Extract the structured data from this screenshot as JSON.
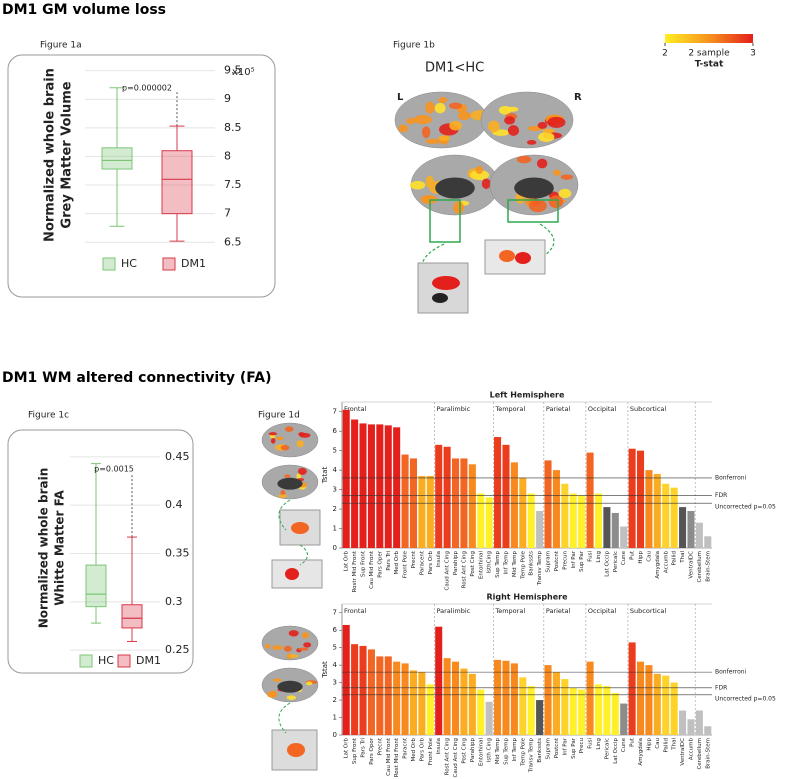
{
  "headings": [
    "DM1 GM volume loss",
    "DM1 WM altered connectivity (FA)"
  ],
  "figure_1b": {
    "label": "Figure 1b",
    "contrast": "DM1<HC",
    "left": "L",
    "right": "R",
    "colorbar": {
      "ticks": [
        2,
        3
      ],
      "label": [
        "2 sample",
        "T-stat"
      ]
    }
  },
  "chart_data": [
    {
      "type": "box",
      "label": "Figure 1a",
      "ylabel": [
        "Normalized whole brain",
        "Grey Matter Volume"
      ],
      "y_multiplier": "x10⁵",
      "annotation": "p=0.000002",
      "grid": true,
      "ylim": [
        6.4,
        9.65
      ],
      "yticks": [
        6.5,
        7,
        7.5,
        8,
        8.5,
        9,
        9.5
      ],
      "series": [
        {
          "name": "HC",
          "color": "#7cc576",
          "min": 6.78,
          "q1": 7.78,
          "median": 7.93,
          "q3": 8.15,
          "max": 9.2
        },
        {
          "name": "DM1",
          "color": "#d9394a",
          "min": 6.52,
          "q1": 7.0,
          "median": 7.6,
          "q3": 8.1,
          "max": 8.53
        }
      ]
    },
    {
      "type": "box",
      "label": "Figure 1c",
      "ylabel": [
        "Normalized whole brain",
        "Whitte Matter FA"
      ],
      "annotation": "p=0.0015",
      "grid": true,
      "ylim": [
        0.245,
        0.455
      ],
      "yticks": [
        0.25,
        0.3,
        0.35,
        0.4,
        0.45
      ],
      "series": [
        {
          "name": "HC",
          "color": "#7cc576",
          "min": 0.278,
          "q1": 0.295,
          "median": 0.308,
          "q3": 0.338,
          "max": 0.443
        },
        {
          "name": "DM1",
          "color": "#d9394a",
          "min": 0.259,
          "q1": 0.273,
          "median": 0.283,
          "q3": 0.297,
          "max": 0.367
        }
      ]
    },
    {
      "type": "bar",
      "label": "Figure 1d",
      "title": "Left Hemisphere",
      "ylabel": "Tstat",
      "ylim": [
        0,
        7.5
      ],
      "yticks": [
        0,
        1,
        2,
        3,
        4,
        5,
        6,
        7
      ],
      "thresholds": [
        {
          "label": "Bonferroni",
          "value": 3.6
        },
        {
          "label": "FDR",
          "value": 2.7
        },
        {
          "label": "Uncorrected p=0.05",
          "value": 2.3
        }
      ],
      "groups": [
        {
          "name": "Frontal",
          "categories": [
            "Lat Orb",
            "Rostr Mid Front",
            "Sup Front",
            "Cau Mid Front",
            "Pars Oper",
            "Pars Tri",
            "Med Orb",
            "Front Pole",
            "Precnt",
            "Paracent",
            "Pars Orb"
          ],
          "values": [
            7.1,
            6.6,
            6.4,
            6.35,
            6.35,
            6.3,
            6.2,
            4.8,
            4.6,
            3.7,
            3.7
          ],
          "colors": [
            "#e3201b",
            "#e3201b",
            "#e3201b",
            "#e3201b",
            "#e3201b",
            "#e3201b",
            "#e3201b",
            "#f26522",
            "#f26522",
            "#fbad21",
            "#fbad21"
          ]
        },
        {
          "name": "Paralimbic",
          "categories": [
            "Insula",
            "Caud Ant Cing",
            "Parahipp",
            "Rost Ant Cing",
            "Post Cing",
            "Entorhinal",
            "IsthCing"
          ],
          "values": [
            5.3,
            5.2,
            4.6,
            4.6,
            4.3,
            2.8,
            2.6
          ],
          "colors": [
            "#ec3c1e",
            "#ec3c1e",
            "#f26522",
            "#f26522",
            "#f7891f",
            "#fff02a",
            "#fff02a"
          ]
        },
        {
          "name": "Temporal",
          "categories": [
            "Sup Temp",
            "Inf Temp",
            "Mid Temp",
            "Temp Pole",
            "Bankssts",
            "Transv Temp"
          ],
          "values": [
            5.7,
            5.3,
            4.4,
            3.6,
            2.8,
            1.9
          ],
          "colors": [
            "#ec3c1e",
            "#ec3c1e",
            "#f7891f",
            "#fbad21",
            "#fff02a",
            "#c0c0c0"
          ]
        },
        {
          "name": "Parietal",
          "categories": [
            "Supram",
            "Postcnt",
            "Precun",
            "Inf Par",
            "Sup Par"
          ],
          "values": [
            4.5,
            4.0,
            3.3,
            2.8,
            2.7
          ],
          "colors": [
            "#f26522",
            "#f7891f",
            "#fdd22a",
            "#fff02a",
            "#fff02a"
          ]
        },
        {
          "name": "Occipital",
          "categories": [
            "Fusi",
            "Ling",
            "Lat Occip",
            "Pericalc",
            "Cune"
          ],
          "values": [
            4.9,
            2.8,
            2.1,
            1.8,
            1.1
          ],
          "colors": [
            "#f26522",
            "#fff02a",
            "#555555",
            "#8c8c8c",
            "#c0c0c0"
          ]
        },
        {
          "name": "Subcortical",
          "categories": [
            "Put",
            "Hipp",
            "Cau",
            "Amygdala",
            "Accumb",
            "Pallid",
            "Thal",
            "VentralDC"
          ],
          "values": [
            5.1,
            5.0,
            4.0,
            3.8,
            3.3,
            3.1,
            2.1,
            1.9
          ],
          "colors": [
            "#ec3c1e",
            "#ec3c1e",
            "#f7891f",
            "#fbad21",
            "#fdd22a",
            "#fdd22a",
            "#555555",
            "#8c8c8c"
          ]
        },
        {
          "categories": [
            "Cerebellum",
            "Brain-Stem"
          ],
          "values": [
            1.3,
            0.6
          ],
          "colors": [
            "#c0c0c0",
            "#c0c0c0"
          ]
        }
      ]
    },
    {
      "type": "bar",
      "title": "Right Hemisphere",
      "ylabel": "Tstat",
      "ylim": [
        0,
        7.5
      ],
      "yticks": [
        0,
        1,
        2,
        3,
        4,
        5,
        6,
        7
      ],
      "thresholds": [
        {
          "label": "Bonferroni",
          "value": 3.6
        },
        {
          "label": "FDR",
          "value": 2.7
        },
        {
          "label": "Uncorrected p=0.05",
          "value": 2.3
        }
      ],
      "groups": [
        {
          "name": "Frontal",
          "categories": [
            "Lat Orb",
            "Sup Front",
            "Pars Tri",
            "Pars Opor",
            "Precnt",
            "Cau Mid Front",
            "Rost Mid Front",
            "Paracnt",
            "Med Orb",
            "Pars Orb",
            "Front Pole"
          ],
          "values": [
            6.3,
            5.2,
            5.1,
            4.9,
            4.5,
            4.5,
            4.2,
            4.1,
            3.7,
            3.6,
            2.9
          ],
          "colors": [
            "#e3201b",
            "#ec3c1e",
            "#ec3c1e",
            "#f26522",
            "#f26522",
            "#f26522",
            "#f7891f",
            "#f7891f",
            "#fbad21",
            "#fbad21",
            "#fff02a"
          ]
        },
        {
          "name": "Paralimbic",
          "categories": [
            "Insula",
            "Rost Ant Cing",
            "Caud Ant Cing",
            "Post Cing",
            "Parahipp",
            "Entorhinal",
            "Isth Cing"
          ],
          "values": [
            6.2,
            4.4,
            4.2,
            3.8,
            3.5,
            2.6,
            1.9
          ],
          "colors": [
            "#e3201b",
            "#f7891f",
            "#f7891f",
            "#fbad21",
            "#fbad21",
            "#fff02a",
            "#c0c0c0"
          ]
        },
        {
          "name": "Temporal",
          "categories": [
            "Mid Temp",
            "Sup Temp",
            "Inf Temp",
            "Temp Pole",
            "Transv Temp",
            "Bankssts"
          ],
          "values": [
            4.3,
            4.25,
            4.1,
            3.3,
            2.8,
            2.0
          ],
          "colors": [
            "#f7891f",
            "#f7891f",
            "#f7891f",
            "#fdd22a",
            "#fff02a",
            "#555555"
          ]
        },
        {
          "name": "Parietal",
          "categories": [
            "Supram",
            "Postcnt",
            "Inf Par",
            "Sup Par",
            "Precu"
          ],
          "values": [
            4.0,
            3.6,
            3.2,
            2.7,
            2.6
          ],
          "colors": [
            "#f7891f",
            "#fbad21",
            "#fdd22a",
            "#fff02a",
            "#fff02a"
          ]
        },
        {
          "name": "Occipital",
          "categories": [
            "Fusi",
            "Ling",
            "Pericalc",
            "Lat Occip",
            "Cune"
          ],
          "values": [
            4.2,
            2.9,
            2.8,
            2.4,
            1.8
          ],
          "colors": [
            "#f7891f",
            "#fff02a",
            "#fff02a",
            "#fff02a",
            "#8c8c8c"
          ]
        },
        {
          "name": "Subcortical",
          "categories": [
            "Put",
            "Amygdala",
            "Hipp",
            "Cau",
            "Pallid",
            "Thal",
            "VentralDC",
            "Accumb"
          ],
          "values": [
            5.3,
            4.2,
            4.0,
            3.5,
            3.4,
            3.0,
            1.4,
            0.9
          ],
          "colors": [
            "#ec3c1e",
            "#f7891f",
            "#f7891f",
            "#fbad21",
            "#fdd22a",
            "#fdd22a",
            "#c0c0c0",
            "#c0c0c0"
          ]
        },
        {
          "categories": [
            "Cerebellum",
            "Brain-Stem"
          ],
          "values": [
            1.4,
            0.5
          ],
          "colors": [
            "#c0c0c0",
            "#c0c0c0"
          ]
        }
      ]
    }
  ]
}
